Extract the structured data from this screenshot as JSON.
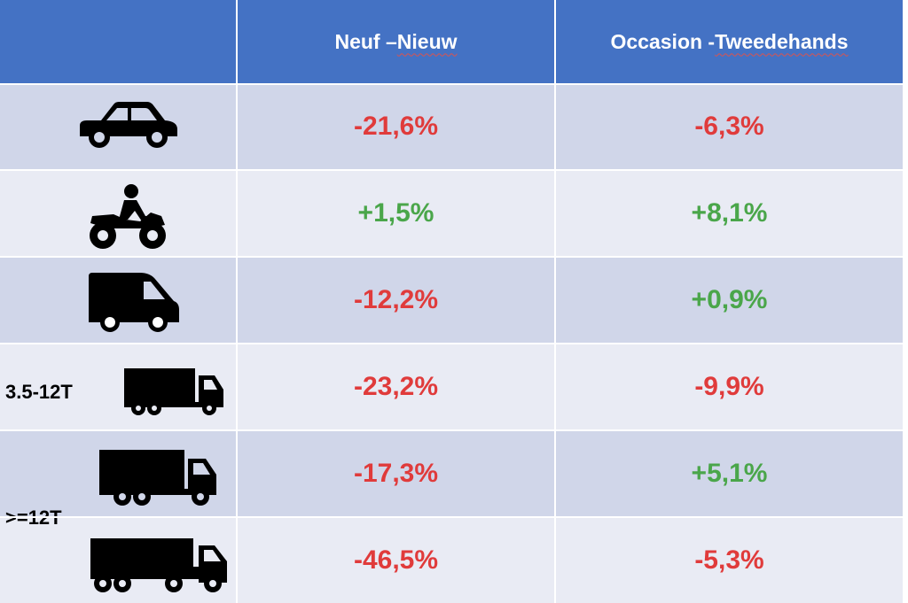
{
  "header": {
    "col1_part1": "Neuf – ",
    "col1_part2": "Nieuw",
    "col2_part1": "Occasion - ",
    "col2_part2": "Tweedehands"
  },
  "colors": {
    "header_bg": "#4472c4",
    "row_dark": "#d0d6e9",
    "row_light": "#e9ebf4",
    "negative": "#e03b3b",
    "positive": "#4aa64a"
  },
  "rows": [
    {
      "vehicle_icon": "car-icon",
      "new_value": "-21,6%",
      "new_sign": "negative",
      "used_value": "-6,3%",
      "used_sign": "negative"
    },
    {
      "vehicle_icon": "motorcycle-icon",
      "new_value": "+1,5%",
      "new_sign": "positive",
      "used_value": "+8,1%",
      "used_sign": "positive"
    },
    {
      "vehicle_icon": "van-icon",
      "new_value": "-12,2%",
      "new_sign": "negative",
      "used_value": "+0,9%",
      "used_sign": "positive"
    },
    {
      "vehicle_icon": "small-truck-icon",
      "label": "3.5-12T",
      "new_value": "-23,2%",
      "new_sign": "negative",
      "used_value": "-9,9%",
      "used_sign": "negative"
    },
    {
      "vehicle_icon": "truck-icon",
      "new_value": "-17,3%",
      "new_sign": "negative",
      "used_value": "+5,1%",
      "used_sign": "positive"
    },
    {
      "vehicle_icon": "semi-truck-icon",
      "new_value": "-46,5%",
      "new_sign": "negative",
      "used_value": "-5,3%",
      "used_sign": "negative"
    }
  ],
  "group_label": ">=12T"
}
